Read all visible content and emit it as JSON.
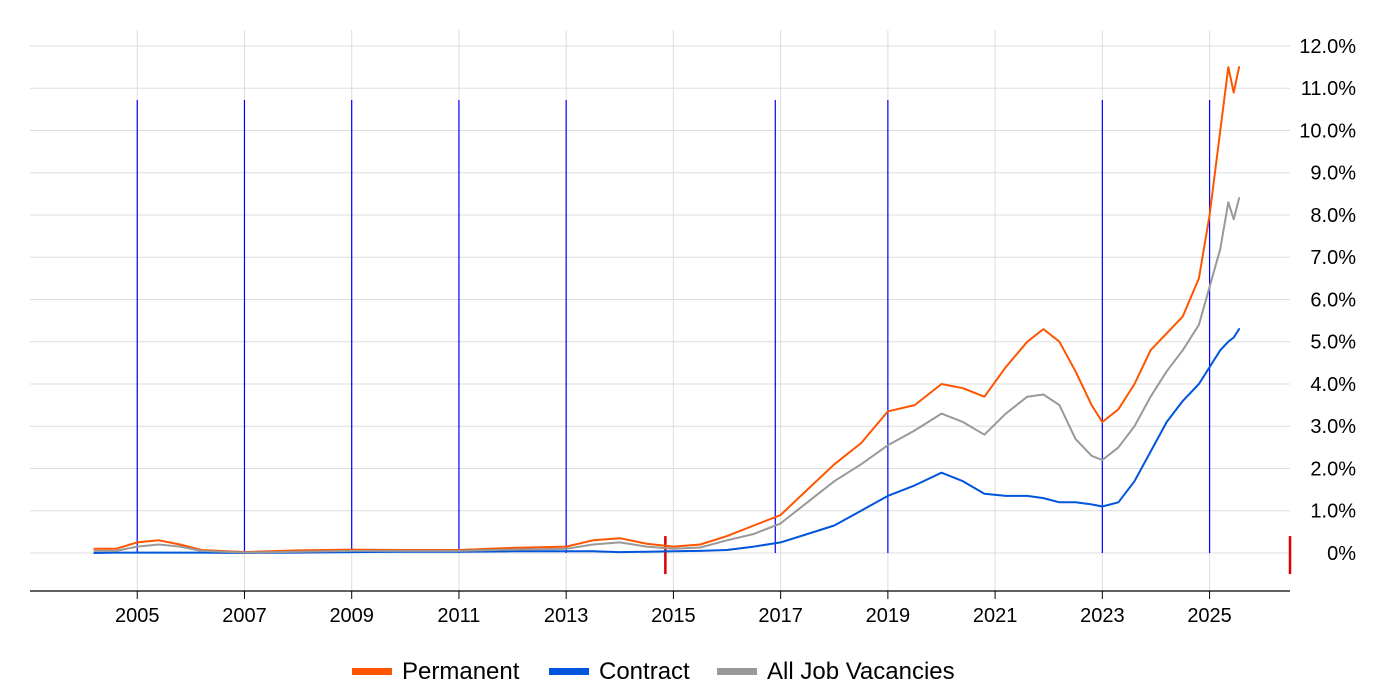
{
  "chart_data": {
    "type": "line",
    "title": "",
    "xlabel": "",
    "ylabel": "",
    "x_tick_labels": [
      "2005",
      "2007",
      "2009",
      "2011",
      "2013",
      "2015",
      "2017",
      "2019",
      "2021",
      "2023",
      "2025"
    ],
    "y_tick_labels": [
      "0%",
      "1.0%",
      "2.0%",
      "3.0%",
      "4.0%",
      "5.0%",
      "6.0%",
      "7.0%",
      "8.0%",
      "9.0%",
      "10.0%",
      "11.0%",
      "12.0%"
    ],
    "xlim": [
      2003.0,
      2026.5
    ],
    "ylim": [
      -0.9,
      12.0
    ],
    "y_axis_position": "right",
    "grid": true,
    "legend_position": "bottom",
    "x": [
      2004.2,
      2004.6,
      2005.0,
      2005.4,
      2005.8,
      2006.2,
      2007.0,
      2008.0,
      2009.0,
      2010.0,
      2011.0,
      2012.0,
      2013.0,
      2013.5,
      2014.0,
      2014.5,
      2015.0,
      2015.5,
      2016.0,
      2016.5,
      2017.0,
      2017.5,
      2018.0,
      2018.5,
      2019.0,
      2019.5,
      2020.0,
      2020.4,
      2020.8,
      2021.2,
      2021.6,
      2021.9,
      2022.2,
      2022.5,
      2022.8,
      2023.0,
      2023.3,
      2023.6,
      2023.9,
      2024.2,
      2024.5,
      2024.8,
      2025.0,
      2025.2,
      2025.35,
      2025.45,
      2025.55
    ],
    "series": [
      {
        "name": "Permanent",
        "color": "#ff5500",
        "values": [
          0.1,
          0.1,
          0.25,
          0.3,
          0.2,
          0.07,
          0.02,
          0.06,
          0.08,
          0.07,
          0.07,
          0.12,
          0.15,
          0.3,
          0.35,
          0.22,
          0.15,
          0.2,
          0.4,
          0.65,
          0.9,
          1.5,
          2.1,
          2.6,
          3.35,
          3.5,
          4.0,
          3.9,
          3.7,
          4.4,
          5.0,
          5.3,
          5.0,
          4.3,
          3.5,
          3.1,
          3.4,
          4.0,
          4.8,
          5.2,
          5.6,
          6.5,
          8.0,
          10.0,
          11.5,
          10.9,
          11.5
        ]
      },
      {
        "name": "Contract",
        "color": "#0055dd",
        "values": [
          0.0,
          0.01,
          0.01,
          0.01,
          0.01,
          0.01,
          0.0,
          0.01,
          0.02,
          0.03,
          0.03,
          0.04,
          0.04,
          0.04,
          0.02,
          0.03,
          0.04,
          0.05,
          0.07,
          0.15,
          0.25,
          0.45,
          0.65,
          1.0,
          1.35,
          1.6,
          1.9,
          1.7,
          1.4,
          1.35,
          1.35,
          1.3,
          1.2,
          1.2,
          1.15,
          1.1,
          1.2,
          1.7,
          2.4,
          3.1,
          3.6,
          4.0,
          4.4,
          4.8,
          5.0,
          5.1,
          5.3
        ]
      },
      {
        "name": "All Job Vacancies",
        "color": "#999999",
        "values": [
          0.05,
          0.05,
          0.15,
          0.2,
          0.15,
          0.05,
          0.01,
          0.03,
          0.05,
          0.05,
          0.05,
          0.08,
          0.1,
          0.2,
          0.25,
          0.15,
          0.1,
          0.13,
          0.3,
          0.45,
          0.7,
          1.2,
          1.7,
          2.1,
          2.55,
          2.9,
          3.3,
          3.1,
          2.8,
          3.3,
          3.7,
          3.75,
          3.5,
          2.7,
          2.3,
          2.2,
          2.5,
          3.0,
          3.7,
          4.3,
          4.8,
          5.4,
          6.3,
          7.2,
          8.3,
          7.9,
          8.4
        ]
      }
    ],
    "vertical_markers": [
      2005,
      2007,
      2009,
      2011,
      2013,
      2016.9,
      2019,
      2023,
      2025
    ],
    "vertical_marker_color": "#0000ff",
    "red_markers": [
      2014.85,
      2026.5
    ],
    "red_marker_color": "#dd0000"
  },
  "legend": {
    "items": [
      "Permanent",
      "Contract",
      "All Job Vacancies"
    ]
  }
}
